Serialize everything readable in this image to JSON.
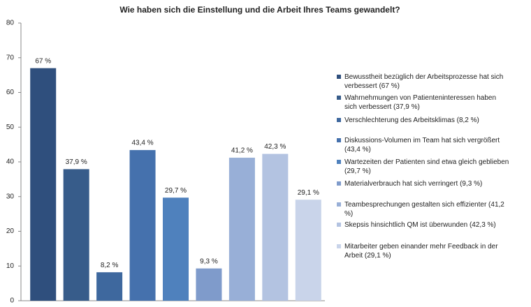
{
  "chart_data": {
    "type": "bar",
    "title": "Wie haben sich die Einstellung und die Arbeit Ihres Teams gewandelt?",
    "categories": [
      null
    ],
    "series": [
      {
        "name": "Bewusstheit bezüglich der Arbeitsprozesse  hat sich verbessert (67 %)",
        "color": "#2f4f7d",
        "values": [
          67
        ],
        "value_labels": [
          "67 %"
        ]
      },
      {
        "name": "Wahrnehmungen von Patienteninteressen  haben sich verbessert (37,9 %)",
        "color": "#375c8a",
        "values": [
          37.9
        ],
        "value_labels": [
          "37,9 %"
        ]
      },
      {
        "name": "Verschlechterung des Arbeitsklimas (8,2 %)",
        "color": "#3e689e",
        "values": [
          8.2
        ],
        "value_labels": [
          "8,2 %"
        ]
      },
      {
        "name": "Diskussions-Volumen im Team hat sich vergrößert (43,4 %)",
        "color": "#4571ad",
        "values": [
          43.4
        ],
        "value_labels": [
          "43,4 %"
        ]
      },
      {
        "name": "Wartezeiten der Patienten sind etwa gleich geblieben (29,7 %)",
        "color": "#4f81bd",
        "values": [
          29.7
        ],
        "value_labels": [
          "29,7 %"
        ]
      },
      {
        "name": "Materialverbrauch hat sich verringert (9,3 %)",
        "color": "#7f9bcb",
        "values": [
          9.3
        ],
        "value_labels": [
          "9,3 %"
        ]
      },
      {
        "name": "Teambesprechungen gestalten sich effizienter  (41,2 %)",
        "color": "#98afd7",
        "values": [
          41.2
        ],
        "value_labels": [
          "41,2 %"
        ]
      },
      {
        "name": "Skepsis hinsichtlich QM ist überwunden (42,3 %)",
        "color": "#b3c3e1",
        "values": [
          42.3
        ],
        "value_labels": [
          "42,3 %"
        ]
      },
      {
        "name": "Mitarbeiter geben einander mehr Feedback in der Arbeit (29,1 %)",
        "color": "#c9d4ea",
        "values": [
          29.1
        ],
        "value_labels": [
          "29,1 %"
        ]
      }
    ],
    "ylim": [
      0,
      80
    ],
    "yticks": [
      0,
      10,
      20,
      30,
      40,
      50,
      60,
      70,
      80
    ],
    "grid": false
  }
}
